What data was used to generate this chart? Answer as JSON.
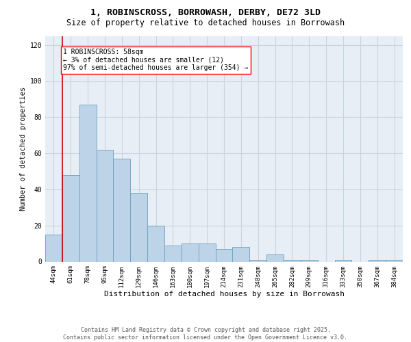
{
  "title": "1, ROBINSCROSS, BORROWASH, DERBY, DE72 3LD",
  "subtitle": "Size of property relative to detached houses in Borrowash",
  "xlabel": "Distribution of detached houses by size in Borrowash",
  "ylabel": "Number of detached properties",
  "categories": [
    "44sqm",
    "61sqm",
    "78sqm",
    "95sqm",
    "112sqm",
    "129sqm",
    "146sqm",
    "163sqm",
    "180sqm",
    "197sqm",
    "214sqm",
    "231sqm",
    "248sqm",
    "265sqm",
    "282sqm",
    "299sqm",
    "316sqm",
    "333sqm",
    "350sqm",
    "367sqm",
    "384sqm"
  ],
  "values": [
    15,
    48,
    87,
    62,
    57,
    38,
    20,
    9,
    10,
    10,
    7,
    8,
    1,
    4,
    1,
    1,
    0,
    1,
    0,
    1,
    1
  ],
  "bar_color": "#bdd4e8",
  "bar_edge_color": "#6a9fc0",
  "vline_color": "#cc0000",
  "annotation_text_line1": "1 ROBINSCROSS: 58sqm",
  "annotation_text_line2": "← 3% of detached houses are smaller (12)",
  "annotation_text_line3": "97% of semi-detached houses are larger (354) →",
  "ylim": [
    0,
    125
  ],
  "yticks": [
    0,
    20,
    40,
    60,
    80,
    100,
    120
  ],
  "bg_color": "#e8eef5",
  "grid_color": "#c8d4e0",
  "footer_line1": "Contains HM Land Registry data © Crown copyright and database right 2025.",
  "footer_line2": "Contains public sector information licensed under the Open Government Licence v3.0.",
  "title_fontsize": 9.5,
  "subtitle_fontsize": 8.5,
  "xlabel_fontsize": 8,
  "ylabel_fontsize": 7.5,
  "tick_fontsize": 6.5,
  "annotation_fontsize": 7,
  "footer_fontsize": 6
}
